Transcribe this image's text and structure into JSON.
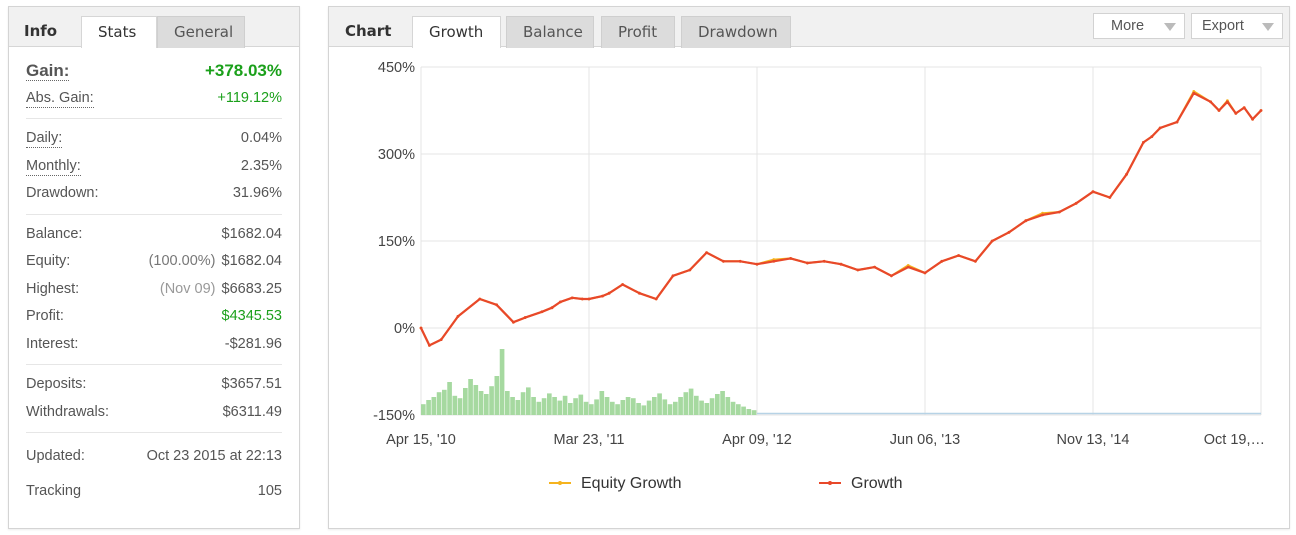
{
  "info": {
    "tabs": [
      {
        "label": "Info"
      },
      {
        "label": "Stats"
      },
      {
        "label": "General"
      }
    ],
    "gain": {
      "label": "Gain:",
      "value": "+378.03%"
    },
    "abs_gain": {
      "label": "Abs. Gain:",
      "value": "+119.12%"
    },
    "daily": {
      "label": "Daily:",
      "value": "0.04%"
    },
    "monthly": {
      "label": "Monthly:",
      "value": "2.35%"
    },
    "drawdown": {
      "label": "Drawdown:",
      "value": "31.96%"
    },
    "balance": {
      "label": "Balance:",
      "value": "$1682.04"
    },
    "equity": {
      "label": "Equity:",
      "note": "(100.00%)",
      "value": "$1682.04"
    },
    "highest": {
      "label": "Highest:",
      "note": "(Nov 09)",
      "value": "$6683.25"
    },
    "profit": {
      "label": "Profit:",
      "value": "$4345.53"
    },
    "interest": {
      "label": "Interest:",
      "value": "-$281.96"
    },
    "deposits": {
      "label": "Deposits:",
      "value": "$3657.51"
    },
    "withdrawals": {
      "label": "Withdrawals:",
      "value": "$6311.49"
    },
    "updated": {
      "label": "Updated:",
      "value": "Oct 23 2015 at 22:13"
    },
    "tracking": {
      "label": "Tracking",
      "value": "105"
    }
  },
  "chart_panel": {
    "tabs": [
      {
        "label": "Chart"
      },
      {
        "label": "Growth"
      },
      {
        "label": "Balance"
      },
      {
        "label": "Profit"
      },
      {
        "label": "Drawdown"
      }
    ],
    "more_label": "More",
    "export_label": "Export"
  },
  "colors": {
    "growth": "#e8482a",
    "equity_growth": "#f5b31e",
    "volume": "#a6d9a0",
    "green_text": "#1ba01b"
  },
  "chart_data": {
    "type": "line",
    "title": "",
    "xlabel": "",
    "ylabel": "",
    "ylim": [
      -150,
      450
    ],
    "y_ticks": [
      "450%",
      "300%",
      "150%",
      "0%",
      "-150%"
    ],
    "y_tick_values": [
      450,
      300,
      150,
      0,
      -150
    ],
    "x_ticks": [
      "Apr 15, '10",
      "Mar 23, '11",
      "Apr 09, '12",
      "Jun 06, '13",
      "Nov 13, '14",
      "Oct 19,…"
    ],
    "legend": [
      "Equity Growth",
      "Growth"
    ],
    "legend_position": "bottom",
    "grid": true,
    "series": [
      {
        "name": "Growth",
        "x_index": [
          0,
          0.05,
          0.12,
          0.22,
          0.35,
          0.45,
          0.55,
          0.62,
          0.72,
          0.78,
          0.83,
          0.9,
          0.96,
          1.0,
          1.08,
          1.12,
          1.2,
          1.3,
          1.4,
          1.5,
          1.6,
          1.7,
          1.8,
          1.9,
          2.0,
          2.1,
          2.2,
          2.3,
          2.4,
          2.5,
          2.6,
          2.7,
          2.8,
          2.9,
          3.0,
          3.1,
          3.2,
          3.3,
          3.4,
          3.5,
          3.6,
          3.7,
          3.8,
          3.9,
          4.0,
          4.1,
          4.2,
          4.3,
          4.35,
          4.4,
          4.5,
          4.6,
          4.7,
          4.75,
          4.8,
          4.85,
          4.9,
          4.95,
          5.0
        ],
        "values": [
          0,
          -30,
          -20,
          20,
          50,
          40,
          10,
          18,
          28,
          35,
          45,
          52,
          50,
          50,
          55,
          60,
          75,
          60,
          50,
          90,
          100,
          130,
          115,
          115,
          110,
          115,
          120,
          112,
          115,
          110,
          100,
          105,
          90,
          105,
          95,
          115,
          125,
          115,
          150,
          165,
          185,
          195,
          200,
          215,
          235,
          225,
          265,
          320,
          330,
          345,
          355,
          405,
          390,
          375,
          390,
          370,
          380,
          360,
          375
        ]
      },
      {
        "name": "Equity Growth",
        "x_index": [
          0,
          0.05,
          0.12,
          0.22,
          0.35,
          0.45,
          0.55,
          0.62,
          0.72,
          0.78,
          0.83,
          0.9,
          0.96,
          1.0,
          1.08,
          1.12,
          1.2,
          1.3,
          1.4,
          1.5,
          1.6,
          1.7,
          1.8,
          1.9,
          2.0,
          2.1,
          2.2,
          2.3,
          2.4,
          2.5,
          2.6,
          2.7,
          2.8,
          2.9,
          3.0,
          3.1,
          3.2,
          3.3,
          3.4,
          3.5,
          3.6,
          3.7,
          3.8,
          3.9,
          4.0,
          4.1,
          4.2,
          4.3,
          4.35,
          4.4,
          4.5,
          4.6,
          4.7,
          4.75,
          4.8,
          4.85,
          4.9,
          4.95,
          5.0
        ],
        "values": [
          0,
          -30,
          -20,
          20,
          50,
          40,
          10,
          18,
          28,
          35,
          45,
          52,
          50,
          50,
          55,
          60,
          75,
          60,
          50,
          90,
          100,
          130,
          115,
          115,
          110,
          118,
          120,
          112,
          115,
          110,
          100,
          105,
          90,
          108,
          95,
          115,
          125,
          115,
          150,
          165,
          185,
          198,
          200,
          215,
          235,
          225,
          265,
          320,
          330,
          345,
          355,
          408,
          390,
          375,
          392,
          370,
          380,
          360,
          375
        ]
      }
    ],
    "volume_bars": {
      "x_range": [
        0,
        2.0
      ],
      "values": [
        18,
        25,
        30,
        38,
        42,
        55,
        32,
        28,
        45,
        60,
        50,
        40,
        35,
        48,
        65,
        110,
        40,
        30,
        25,
        38,
        46,
        30,
        22,
        28,
        36,
        30,
        24,
        32,
        20,
        28,
        34,
        22,
        18,
        26,
        40,
        30,
        22,
        18,
        25,
        30,
        28,
        20,
        16,
        24,
        30,
        36,
        26,
        18,
        22,
        30,
        38,
        44,
        32,
        24,
        20,
        28,
        35,
        40,
        30,
        22,
        18,
        14,
        10,
        8
      ]
    }
  }
}
